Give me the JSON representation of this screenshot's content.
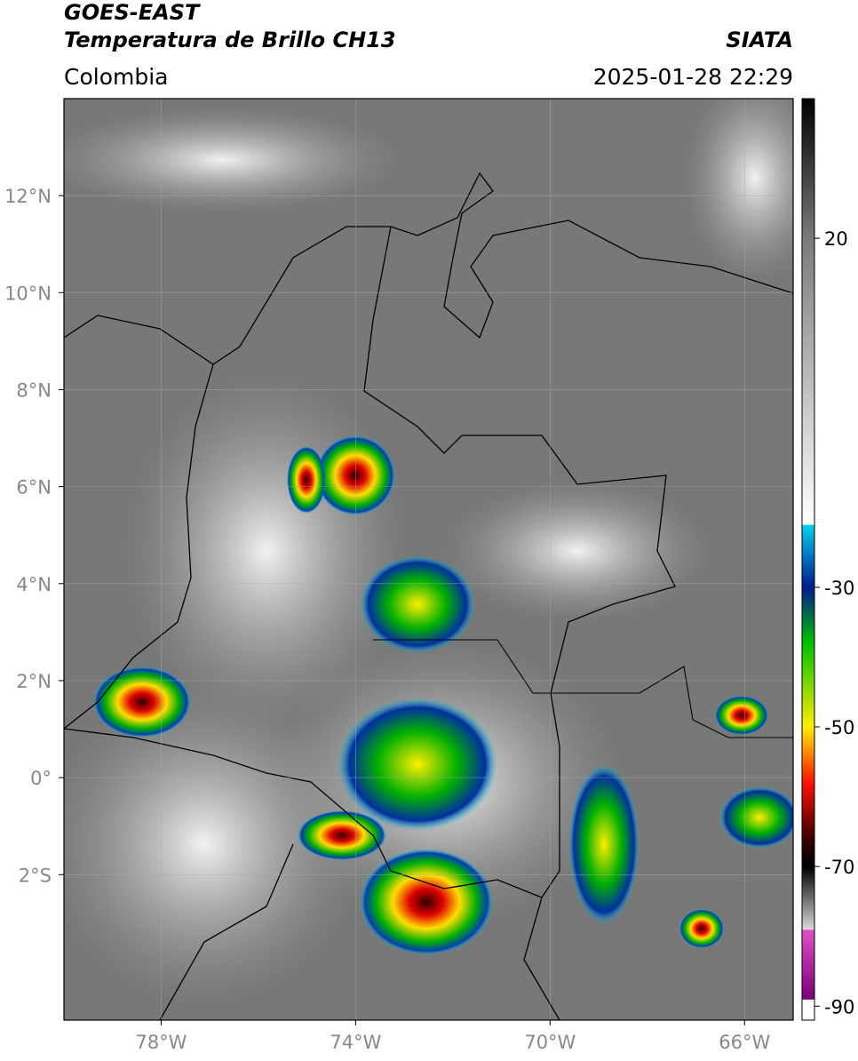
{
  "header": {
    "title": "GOES-EAST",
    "subtitle": "Temperatura de Brillo CH13",
    "source": "SIATA",
    "region": "Colombia",
    "datetime": "2025-01-28 22:29"
  },
  "map": {
    "xlim": [
      -80,
      -65
    ],
    "ylim": [
      -5,
      14
    ],
    "xticks": [
      {
        "value": -78,
        "label": "78°W"
      },
      {
        "value": -74,
        "label": "74°W"
      },
      {
        "value": -70,
        "label": "70°W"
      },
      {
        "value": -66,
        "label": "66°W"
      }
    ],
    "yticks": [
      {
        "value": 12,
        "label": "12°N"
      },
      {
        "value": 10,
        "label": "10°N"
      },
      {
        "value": 8,
        "label": "8°N"
      },
      {
        "value": 6,
        "label": "6°N"
      },
      {
        "value": 4,
        "label": "4°N"
      },
      {
        "value": 2,
        "label": "2°N"
      },
      {
        "value": 0,
        "label": "0°"
      },
      {
        "value": -2,
        "label": "2°S"
      }
    ],
    "grid": true
  },
  "colorbar": {
    "lim": [
      -92,
      40
    ],
    "ticks": [
      20,
      -30,
      -50,
      -70,
      -90
    ],
    "stops": [
      {
        "value": 40,
        "color": "#000000"
      },
      {
        "value": 20,
        "color": "#7a7a7a"
      },
      {
        "value": -21,
        "color": "#ffffff"
      },
      {
        "value": -21.1,
        "color": "#00d0f0"
      },
      {
        "value": -30,
        "color": "#001a8c"
      },
      {
        "value": -38,
        "color": "#00c000"
      },
      {
        "value": -50,
        "color": "#ffee00"
      },
      {
        "value": -58,
        "color": "#ff1000"
      },
      {
        "value": -66,
        "color": "#3a0000"
      },
      {
        "value": -70,
        "color": "#000000"
      },
      {
        "value": -79,
        "color": "#d8d8d8"
      },
      {
        "value": -79.1,
        "color": "#e050c8"
      },
      {
        "value": -89,
        "color": "#7a007a"
      },
      {
        "value": -89.1,
        "color": "#ffffff"
      },
      {
        "value": -92,
        "color": "#ffffff"
      }
    ]
  }
}
